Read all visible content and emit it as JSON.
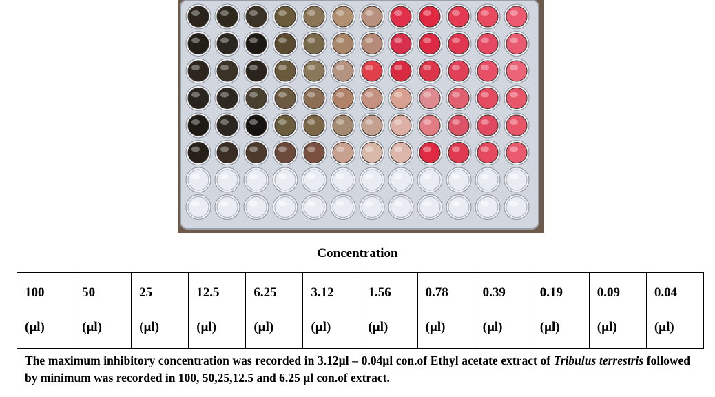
{
  "figure": {
    "alt": "96-well microplate showing dilution series of extract",
    "colors": {
      "tray": "#d2d6de",
      "tray_edge": "#9aa0aa",
      "background": "#6e5a4a",
      "empty_well": "#e9edf3"
    },
    "row_colors": [
      [
        "#2a241c",
        "#2e281e",
        "#3a3224",
        "#6a5a3a",
        "#8a7656",
        "#b09070",
        "#b8927e",
        "#e0304a",
        "#e02840",
        "#e43a52",
        "#e84a60",
        "#ec5a70"
      ],
      [
        "#221e18",
        "#2a2620",
        "#1c1814",
        "#5a4a30",
        "#7a6a4c",
        "#a8866a",
        "#b58a78",
        "#d8304c",
        "#dc2a44",
        "#e03650",
        "#e44862",
        "#e85a70"
      ],
      [
        "#2c261e",
        "#3a3226",
        "#2a241c",
        "#6a5a3c",
        "#8a785a",
        "#b49480",
        "#e0404a",
        "#d82a40",
        "#dc3448",
        "#e04058",
        "#e85068",
        "#ec6478"
      ],
      [
        "#2a2420",
        "#2e2822",
        "#4a4030",
        "#6c5a40",
        "#8c6e54",
        "#b08268",
        "#c49080",
        "#d8a090",
        "#dc8a90",
        "#e06070",
        "#e44a60",
        "#e8566a"
      ],
      [
        "#1e1a16",
        "#2c2620",
        "#161310",
        "#6a5c3c",
        "#7c6648",
        "#a48a70",
        "#c4a090",
        "#dcb0a4",
        "#e27c84",
        "#dc5266",
        "#e04a60",
        "#e85468"
      ],
      [
        "#262018",
        "#3a2e24",
        "#4c3a2c",
        "#6c4a3c",
        "#7a5040",
        "#c8a090",
        "#d8b8a8",
        "#dcb6aa",
        "#e02a44",
        "#e03a50",
        "#e64a5e",
        "#ea5a6e"
      ],
      [
        "empty",
        "empty",
        "empty",
        "empty",
        "empty",
        "empty",
        "empty",
        "empty",
        "empty",
        "empty",
        "empty",
        "empty"
      ],
      [
        "empty",
        "empty",
        "empty",
        "empty",
        "empty",
        "empty",
        "empty",
        "empty",
        "empty",
        "empty",
        "empty",
        "empty"
      ]
    ]
  },
  "caption": "Concentration",
  "table": {
    "columns": [
      {
        "value": "100",
        "unit": "(µl)"
      },
      {
        "value": "50",
        "unit": "(µl)"
      },
      {
        "value": "25",
        "unit": "(µl)"
      },
      {
        "value": "12.5",
        "unit": "(µl)"
      },
      {
        "value": "6.25",
        "unit": "(µl)"
      },
      {
        "value": "3.12",
        "unit": "(µl)"
      },
      {
        "value": "1.56",
        "unit": "(µl)"
      },
      {
        "value": "0.78",
        "unit": "(µl)"
      },
      {
        "value": "0.39",
        "unit": "(µl)"
      },
      {
        "value": "0.19",
        "unit": "(µl)"
      },
      {
        "value": "0.09",
        "unit": "(µl)"
      },
      {
        "value": "0.04",
        "unit": "(µl)"
      }
    ]
  },
  "note": {
    "part1": "The maximum inhibitory concentration was recorded in 3.12µl – 0.04µl con.of Ethyl acetate extract of ",
    "species": "Tribulus terrestris",
    "part2": " followed by minimum was recorded in 100, 50,25,12.5 and 6.25 µl con.of extract."
  }
}
